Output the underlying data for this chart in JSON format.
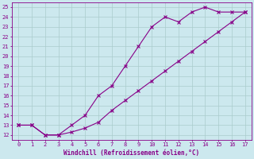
{
  "line1_x": [
    0,
    1,
    2,
    3,
    4,
    5,
    6,
    7,
    8,
    9,
    10,
    11,
    12,
    13,
    14,
    15,
    16,
    17
  ],
  "line1_y": [
    13,
    13,
    12,
    12,
    13,
    14,
    16,
    17,
    19,
    21,
    23,
    24,
    23.5,
    24.5,
    25,
    24.5,
    24.5,
    24.5
  ],
  "line2_x": [
    0,
    1,
    2,
    3,
    4,
    5,
    6,
    7,
    8,
    9,
    10,
    11,
    12,
    13,
    14,
    15,
    16,
    17
  ],
  "line2_y": [
    13,
    13,
    12,
    12,
    12.3,
    12.7,
    13.3,
    14.5,
    15.5,
    16.5,
    17.5,
    18.5,
    19.5,
    20.5,
    21.5,
    22.5,
    23.5,
    24.5
  ],
  "color": "#880088",
  "bg_color": "#cce8ee",
  "grid_color": "#aacccc",
  "xlabel": "Windchill (Refroidissement éolien,°C)",
  "ylim_min": 12,
  "ylim_max": 25,
  "xlim_min": 0,
  "xlim_max": 17,
  "ytick_min": 12,
  "ytick_max": 25,
  "xticks": [
    0,
    1,
    2,
    3,
    4,
    5,
    6,
    7,
    8,
    9,
    10,
    11,
    12,
    13,
    14,
    15,
    16,
    17
  ]
}
